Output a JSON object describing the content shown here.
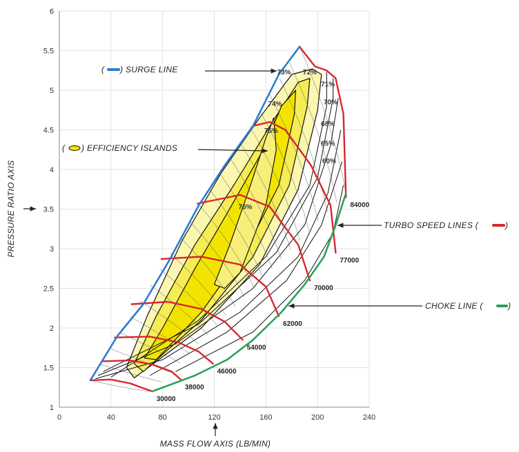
{
  "chart_data": {
    "type": "line",
    "subtype": "compressor-map",
    "title": "",
    "xlabel": "MASS FLOW AXIS (LB/MIN)",
    "ylabel": "PRESSURE RATIO AXIS",
    "xlim": [
      0,
      240
    ],
    "ylim": [
      1,
      6
    ],
    "x_ticks": [
      "0",
      "40",
      "80",
      "120",
      "160",
      "200",
      "240"
    ],
    "y_ticks": [
      "1",
      "1.5",
      "2",
      "2.5",
      "3",
      "3.5",
      "4",
      "4.5",
      "5",
      "5.5",
      "6"
    ],
    "grid": true,
    "colors": {
      "surge": "#2e7bd0",
      "choke": "#2aa05a",
      "speed": "#d8262b",
      "island_fill": "#f2e400",
      "island_fill_light": "#fbf6b0",
      "contour": "#111111",
      "axis_text": "#333333"
    },
    "annotations": {
      "surge_line": "SURGE LINE",
      "efficiency_islands": "EFFICIENCY ISLANDS",
      "turbo_speed_lines": "TURBO SPEED LINES",
      "choke_line": "CHOKE LINE"
    },
    "surge_line": [
      [
        24,
        1.34
      ],
      [
        45,
        1.9
      ],
      [
        65,
        2.3
      ],
      [
        85,
        2.85
      ],
      [
        108,
        3.55
      ],
      [
        128,
        4.05
      ],
      [
        150,
        4.55
      ],
      [
        170,
        5.2
      ],
      [
        186,
        5.55
      ]
    ],
    "choke_line": [
      [
        72,
        1.2
      ],
      [
        105,
        1.4
      ],
      [
        130,
        1.6
      ],
      [
        150,
        1.85
      ],
      [
        172,
        2.2
      ],
      [
        190,
        2.55
      ],
      [
        205,
        2.9
      ],
      [
        214,
        3.3
      ],
      [
        222,
        3.7
      ]
    ],
    "speed_lines": [
      {
        "label": "30000",
        "points": [
          [
            24,
            1.34
          ],
          [
            40,
            1.35
          ],
          [
            55,
            1.3
          ],
          [
            65,
            1.24
          ],
          [
            72,
            1.2
          ]
        ]
      },
      {
        "label": "38000",
        "points": [
          [
            34,
            1.58
          ],
          [
            55,
            1.59
          ],
          [
            72,
            1.54
          ],
          [
            87,
            1.45
          ],
          [
            94,
            1.35
          ]
        ]
      },
      {
        "label": "46000",
        "points": [
          [
            43,
            1.88
          ],
          [
            70,
            1.89
          ],
          [
            92,
            1.82
          ],
          [
            108,
            1.7
          ],
          [
            119,
            1.55
          ]
        ]
      },
      {
        "label": "54000",
        "points": [
          [
            56,
            2.3
          ],
          [
            84,
            2.33
          ],
          [
            110,
            2.24
          ],
          [
            128,
            2.08
          ],
          [
            142,
            1.85
          ]
        ]
      },
      {
        "label": "62000",
        "points": [
          [
            79,
            2.87
          ],
          [
            110,
            2.9
          ],
          [
            140,
            2.8
          ],
          [
            160,
            2.52
          ],
          [
            170,
            2.15
          ]
        ]
      },
      {
        "label": "70000",
        "points": [
          [
            107,
            3.57
          ],
          [
            140,
            3.68
          ],
          [
            163,
            3.53
          ],
          [
            185,
            3.05
          ],
          [
            194,
            2.6
          ]
        ]
      },
      {
        "label": "77000",
        "points": [
          [
            150,
            4.55
          ],
          [
            163,
            4.6
          ],
          [
            175,
            4.5
          ],
          [
            195,
            4.05
          ],
          [
            210,
            3.55
          ],
          [
            214,
            2.95
          ]
        ]
      },
      {
        "label": "84000",
        "points": [
          [
            186,
            5.55
          ],
          [
            198,
            5.3
          ],
          [
            207,
            5.25
          ],
          [
            214,
            5.15
          ],
          [
            220,
            4.7
          ],
          [
            222,
            3.65
          ]
        ]
      }
    ],
    "efficiency_islands": [
      {
        "label": "76%",
        "level": 76,
        "points": [
          [
            140,
            2.7
          ],
          [
            160,
            3.55
          ],
          [
            168,
            4.25
          ],
          [
            166,
            4.65
          ],
          [
            160,
            4.4
          ],
          [
            148,
            3.8
          ],
          [
            132,
            3.05
          ],
          [
            120,
            2.55
          ],
          [
            128,
            2.5
          ],
          [
            140,
            2.7
          ]
        ]
      },
      {
        "label": "75%",
        "level": 75,
        "points": [
          [
            75,
            1.6
          ],
          [
            110,
            2.2
          ],
          [
            145,
            3.0
          ],
          [
            170,
            3.8
          ],
          [
            182,
            4.7
          ],
          [
            183,
            5.0
          ],
          [
            172,
            4.8
          ],
          [
            158,
            4.25
          ],
          [
            130,
            3.45
          ],
          [
            105,
            2.75
          ],
          [
            80,
            2.0
          ],
          [
            66,
            1.62
          ],
          [
            75,
            1.6
          ]
        ]
      },
      {
        "label": "74%",
        "level": 74,
        "points": [
          [
            65,
            1.45
          ],
          [
            110,
            2.1
          ],
          [
            150,
            2.9
          ],
          [
            178,
            3.8
          ],
          [
            192,
            4.8
          ],
          [
            194,
            5.15
          ],
          [
            185,
            5.1
          ],
          [
            165,
            4.6
          ],
          [
            135,
            3.8
          ],
          [
            105,
            3.05
          ],
          [
            75,
            2.15
          ],
          [
            58,
            1.55
          ],
          [
            65,
            1.45
          ]
        ]
      },
      {
        "label": "73%",
        "level": 73,
        "points": [
          [
            58,
            1.37
          ],
          [
            110,
            2.0
          ],
          [
            155,
            2.8
          ],
          [
            185,
            3.75
          ],
          [
            200,
            4.75
          ],
          [
            203,
            5.2
          ],
          [
            196,
            5.27
          ],
          [
            180,
            5.2
          ],
          [
            155,
            4.65
          ],
          [
            125,
            3.95
          ],
          [
            95,
            3.1
          ],
          [
            68,
            2.15
          ],
          [
            52,
            1.5
          ],
          [
            58,
            1.37
          ]
        ]
      }
    ],
    "efficiency_labels_outside": [
      "72%",
      "71%",
      "70%",
      "68%",
      "65%",
      "60%"
    ]
  }
}
